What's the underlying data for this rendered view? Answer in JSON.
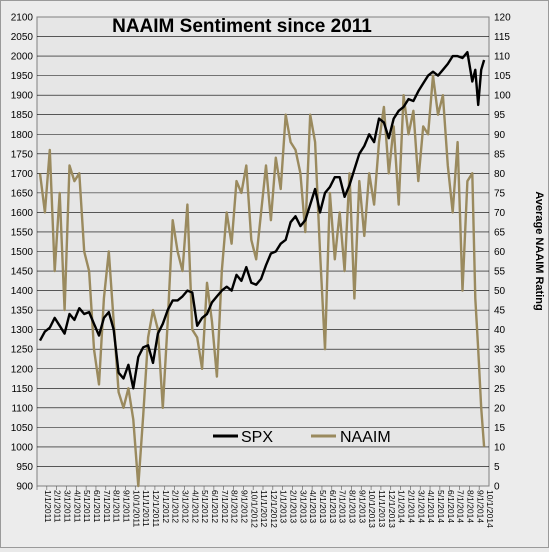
{
  "chart_data": {
    "type": "line",
    "title": "NAAIM Sentiment since 2011",
    "xlabel": "",
    "ylabel_left": "",
    "ylabel_right": "Average NAAIM Rating",
    "ylim_left": [
      900,
      2100
    ],
    "ylim_right": [
      0,
      120
    ],
    "left_ticks": [
      900,
      950,
      1000,
      1050,
      1100,
      1150,
      1200,
      1250,
      1300,
      1350,
      1400,
      1450,
      1500,
      1550,
      1600,
      1650,
      1700,
      1750,
      1800,
      1850,
      1900,
      1950,
      2000,
      2050,
      2100
    ],
    "right_ticks": [
      0,
      5,
      10,
      15,
      20,
      25,
      30,
      35,
      40,
      45,
      50,
      55,
      60,
      65,
      70,
      75,
      80,
      85,
      90,
      95,
      100,
      105,
      110,
      115,
      120
    ],
    "x_tick_labels": [
      "1/1/2011",
      "2/1/2011",
      "3/1/2011",
      "4/1/2011",
      "5/1/2011",
      "6/1/2011",
      "7/1/2011",
      "8/1/2011",
      "9/1/2011",
      "10/1/2011",
      "11/1/2011",
      "12/1/2011",
      "1/1/2012",
      "2/1/2012",
      "3/1/2012",
      "4/1/2012",
      "5/1/2012",
      "6/1/2012",
      "7/1/2012",
      "8/1/2012",
      "9/1/2012",
      "10/1/2012",
      "11/1/2012",
      "12/1/2012",
      "1/1/2013",
      "2/1/2013",
      "3/1/2013",
      "4/1/2013",
      "5/1/2013",
      "6/1/2013",
      "7/1/2013",
      "8/1/2013",
      "9/1/2013",
      "10/1/2013",
      "11/1/2013",
      "12/1/2013",
      "1/1/2014",
      "2/1/2014",
      "3/1/2014",
      "4/1/2014",
      "5/1/2014",
      "6/1/2014",
      "7/1/2014",
      "8/1/2014",
      "9/1/2014",
      "10/1/2014"
    ],
    "grid": true,
    "legend_position": "bottom-center",
    "series": [
      {
        "name": "SPX",
        "axis": "left",
        "color": "#000000",
        "x": [
          0,
          0.5,
          1,
          1.5,
          2,
          2.5,
          3,
          3.5,
          4,
          4.5,
          5,
          5.5,
          6,
          6.5,
          7,
          7.5,
          8,
          8.5,
          9,
          9.5,
          10,
          10.5,
          11,
          11.5,
          12,
          12.5,
          13,
          13.5,
          14,
          14.5,
          15,
          15.5,
          16,
          16.5,
          17,
          17.5,
          18,
          18.5,
          19,
          19.5,
          20,
          20.5,
          21,
          21.5,
          22,
          22.5,
          23,
          23.5,
          24,
          24.5,
          25,
          25.5,
          26,
          26.5,
          27,
          27.5,
          28,
          28.5,
          29,
          29.5,
          30,
          30.5,
          31,
          31.5,
          32,
          32.5,
          33,
          33.5,
          34,
          34.5,
          35,
          35.5,
          36,
          36.5,
          37,
          37.5,
          38,
          38.5,
          39,
          39.5,
          40,
          40.5,
          41,
          41.5,
          42,
          42.5,
          43,
          43.5,
          44,
          44.3,
          44.6,
          44.9,
          45.2
        ],
        "values": [
          1272,
          1295,
          1305,
          1330,
          1310,
          1290,
          1340,
          1325,
          1355,
          1340,
          1345,
          1315,
          1285,
          1330,
          1345,
          1300,
          1190,
          1175,
          1210,
          1150,
          1230,
          1255,
          1260,
          1215,
          1290,
          1315,
          1350,
          1375,
          1375,
          1385,
          1400,
          1395,
          1310,
          1330,
          1340,
          1370,
          1385,
          1400,
          1410,
          1400,
          1440,
          1425,
          1460,
          1420,
          1415,
          1430,
          1465,
          1495,
          1500,
          1520,
          1530,
          1575,
          1590,
          1565,
          1580,
          1620,
          1660,
          1600,
          1650,
          1665,
          1690,
          1690,
          1640,
          1670,
          1710,
          1750,
          1770,
          1800,
          1780,
          1840,
          1830,
          1790,
          1840,
          1860,
          1870,
          1890,
          1885,
          1910,
          1930,
          1950,
          1960,
          1950,
          1965,
          1980,
          2000,
          2000,
          1995,
          2010,
          1935,
          1965,
          1875,
          1965,
          1990
        ]
      },
      {
        "name": "NAAIM",
        "axis": "right",
        "color": "#9a8a5e",
        "x": [
          0,
          0.5,
          1,
          1.5,
          2,
          2.5,
          3,
          3.5,
          4,
          4.5,
          5,
          5.5,
          6,
          6.5,
          7,
          7.5,
          8,
          8.5,
          9,
          9.5,
          10,
          10.5,
          11,
          11.5,
          12,
          12.5,
          13,
          13.5,
          14,
          14.5,
          15,
          15.5,
          16,
          16.5,
          17,
          17.5,
          18,
          18.5,
          19,
          19.5,
          20,
          20.5,
          21,
          21.5,
          22,
          22.5,
          23,
          23.5,
          24,
          24.5,
          25,
          25.5,
          26,
          26.5,
          27,
          27.5,
          28,
          28.5,
          29,
          29.5,
          30,
          30.5,
          31,
          31.5,
          32,
          32.5,
          33,
          33.5,
          34,
          34.5,
          35,
          35.5,
          36,
          36.5,
          37,
          37.5,
          38,
          38.5,
          39,
          39.5,
          40,
          40.5,
          41,
          41.5,
          42,
          42.5,
          43,
          43.5,
          44,
          44.3,
          44.6,
          44.9,
          45.2
        ],
        "values": [
          80,
          70,
          86,
          55,
          75,
          45,
          82,
          78,
          80,
          60,
          55,
          35,
          26,
          48,
          60,
          42,
          24,
          20,
          25,
          17,
          0,
          18,
          38,
          45,
          40,
          20,
          42,
          68,
          60,
          55,
          72,
          40,
          38,
          30,
          52,
          42,
          28,
          55,
          70,
          62,
          78,
          75,
          82,
          63,
          58,
          70,
          82,
          68,
          84,
          76,
          95,
          88,
          86,
          80,
          65,
          95,
          88,
          60,
          35,
          75,
          58,
          70,
          55,
          80,
          48,
          78,
          64,
          80,
          72,
          88,
          97,
          80,
          92,
          72,
          100,
          90,
          96,
          78,
          92,
          90,
          105,
          95,
          100,
          82,
          70,
          88,
          50,
          78,
          80,
          48,
          35,
          20,
          10
        ]
      }
    ]
  }
}
